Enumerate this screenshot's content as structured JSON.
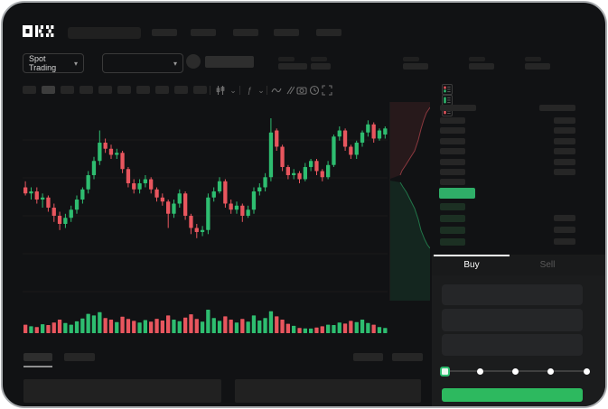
{
  "header": {
    "brand": "OKX"
  },
  "ticker_bar": {
    "market_selector_label": "Spot Trading"
  },
  "chart_toolbar": {
    "timeframes": {
      "count": 10,
      "active_index": 1
    },
    "icons": [
      "candle-type",
      "chevron-down",
      "indicators",
      "chevron-down",
      "line-tool",
      "compare",
      "camera",
      "clock",
      "fullscreen"
    ]
  },
  "chart_data": {
    "type": "candlestick",
    "title": "",
    "note": "no axis labels visible; prices normalized 0-100 (100 = chart top)",
    "grid": true,
    "candles": [
      [
        58,
        61,
        54,
        55
      ],
      [
        55,
        58,
        52,
        56
      ],
      [
        56,
        58,
        50,
        52
      ],
      [
        52,
        55,
        48,
        53
      ],
      [
        53,
        54,
        46,
        48
      ],
      [
        48,
        50,
        41,
        44
      ],
      [
        44,
        46,
        37,
        40
      ],
      [
        40,
        45,
        38,
        43
      ],
      [
        43,
        49,
        41,
        47
      ],
      [
        47,
        54,
        45,
        52
      ],
      [
        52,
        58,
        50,
        57
      ],
      [
        57,
        66,
        55,
        64
      ],
      [
        64,
        73,
        62,
        71
      ],
      [
        71,
        86,
        69,
        80
      ],
      [
        80,
        82,
        75,
        77
      ],
      [
        77,
        79,
        72,
        74
      ],
      [
        74,
        77,
        72,
        75
      ],
      [
        75,
        76,
        65,
        67
      ],
      [
        67,
        68,
        58,
        60
      ],
      [
        60,
        62,
        55,
        57
      ],
      [
        57,
        62,
        55,
        60
      ],
      [
        60,
        64,
        58,
        62
      ],
      [
        62,
        63,
        55,
        57
      ],
      [
        57,
        58,
        51,
        53
      ],
      [
        53,
        55,
        49,
        51
      ],
      [
        51,
        52,
        38,
        45
      ],
      [
        45,
        52,
        43,
        50
      ],
      [
        50,
        57,
        48,
        55
      ],
      [
        55,
        56,
        42,
        44
      ],
      [
        44,
        45,
        35,
        38
      ],
      [
        38,
        40,
        33,
        36
      ],
      [
        36,
        39,
        34,
        37
      ],
      [
        37,
        55,
        35,
        53
      ],
      [
        53,
        58,
        51,
        56
      ],
      [
        56,
        63,
        55,
        61
      ],
      [
        61,
        62,
        48,
        50
      ],
      [
        50,
        52,
        45,
        47
      ],
      [
        47,
        51,
        45,
        49
      ],
      [
        49,
        50,
        41,
        44
      ],
      [
        44,
        49,
        43,
        47
      ],
      [
        47,
        58,
        45,
        56
      ],
      [
        56,
        60,
        54,
        58
      ],
      [
        58,
        65,
        56,
        63
      ],
      [
        63,
        92,
        61,
        85
      ],
      [
        86,
        87,
        76,
        78
      ],
      [
        78,
        79,
        66,
        68
      ],
      [
        68,
        69,
        62,
        64
      ],
      [
        64,
        67,
        62,
        65
      ],
      [
        65,
        66,
        60,
        62
      ],
      [
        62,
        70,
        61,
        68
      ],
      [
        68,
        72,
        66,
        71
      ],
      [
        71,
        72,
        64,
        66
      ],
      [
        66,
        67,
        61,
        63
      ],
      [
        63,
        71,
        62,
        69
      ],
      [
        69,
        84,
        68,
        83
      ],
      [
        83,
        88,
        81,
        86
      ],
      [
        86,
        87,
        76,
        78
      ],
      [
        78,
        79,
        72,
        74
      ],
      [
        74,
        81,
        72,
        80
      ],
      [
        80,
        86,
        78,
        85
      ],
      [
        85,
        91,
        83,
        89
      ],
      [
        89,
        90,
        80,
        82
      ],
      [
        82,
        87,
        81,
        86
      ],
      [
        84,
        88,
        82,
        87
      ]
    ],
    "volumes": [
      28,
      20,
      16,
      30,
      26,
      38,
      52,
      36,
      28,
      44,
      58,
      80,
      72,
      88,
      60,
      52,
      40,
      66,
      55,
      46,
      38,
      50,
      42,
      56,
      48,
      72,
      52,
      45,
      62,
      78,
      55,
      42,
      100,
      60,
      46,
      68,
      52,
      38,
      55,
      42,
      72,
      48,
      60,
      92,
      68,
      52,
      32,
      22,
      12,
      10,
      9,
      14,
      20,
      28,
      26,
      38,
      33,
      46,
      40,
      52,
      36,
      28,
      16,
      12
    ]
  },
  "depth_chart": {
    "asks_fill": "0,0 44,0 44,6 40,12 37,20 34,30 31,42 27,54 22,62 17,70 13,76 11,81 0,85",
    "asks_curve": "44,6 40,12 37,20 34,30 31,42 27,54 22,62 17,70 13,76 11,81",
    "bids_fill": "0,87 11,89 14,94 18,100 22,108 27,118 31,130 34,142 38,152 41,158 44,162 44,220 0,220",
    "bids_curve": "11,89 14,94 18,100 22,108 27,118 31,130 34,142 38,152 41,158 44,162"
  },
  "orderbook": {
    "layout_icons": [
      "combined-book",
      "bids-only",
      "asks-only"
    ],
    "asks": [
      {
        "price_w": 28,
        "amount_w": 24
      },
      {
        "price_w": 28,
        "amount_w": 24
      },
      {
        "price_w": 28,
        "amount_w": 24
      },
      {
        "price_w": 28,
        "amount_w": 24
      },
      {
        "price_w": 28,
        "amount_w": 24
      },
      {
        "price_w": 28,
        "amount_w": 24
      },
      {
        "price_w": 28,
        "amount_w": 0
      }
    ],
    "last_price_highlighted": true,
    "bids": [
      {
        "price_w": 28,
        "amount_w": 0
      },
      {
        "price_w": 28,
        "amount_w": 24
      },
      {
        "price_w": 28,
        "amount_w": 24
      },
      {
        "price_w": 28,
        "amount_w": 24
      }
    ]
  },
  "trade_panel": {
    "tabs": [
      {
        "label": "Buy",
        "active": true
      },
      {
        "label": "Sell",
        "active": false
      }
    ],
    "inputs_count": 3,
    "slider": {
      "stops": 5,
      "active_stop": 0
    }
  },
  "bottom_bar": {
    "left_tabs": 2,
    "active_tab_index": 0,
    "right_blocks": 2,
    "panels": 2
  },
  "colors": {
    "up": "#2ebd70",
    "down": "#e8565e",
    "buy_green": "#2db95f",
    "last_price": "#2fae68",
    "tab_active_line": "#ffffff"
  }
}
